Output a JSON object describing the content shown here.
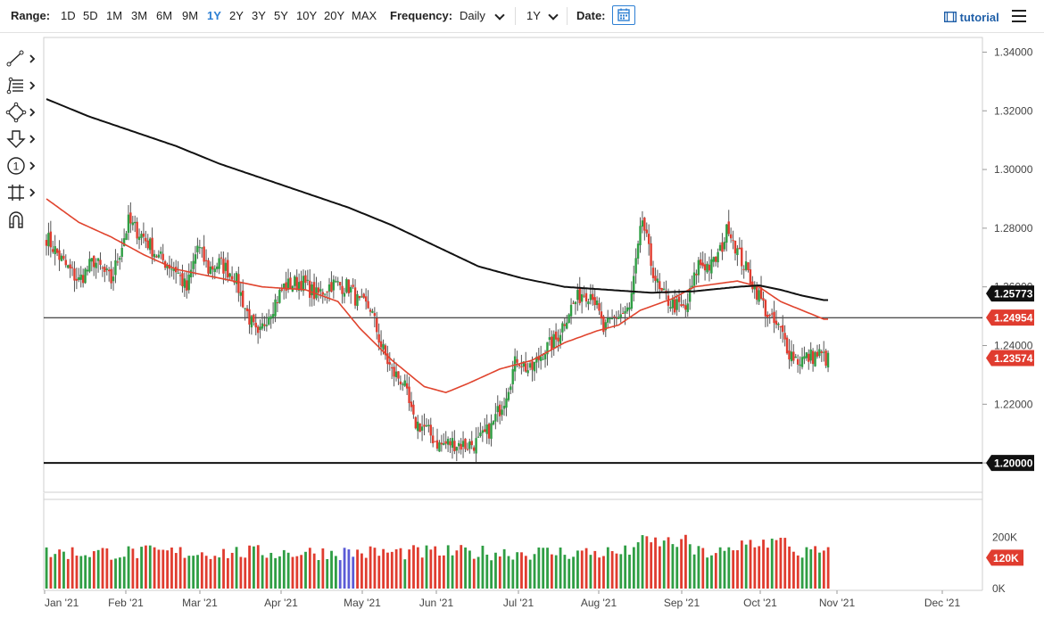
{
  "toolbar": {
    "range_label": "Range:",
    "ranges": [
      "1D",
      "5D",
      "1M",
      "3M",
      "6M",
      "9M",
      "1Y",
      "2Y",
      "3Y",
      "5Y",
      "10Y",
      "20Y",
      "MAX"
    ],
    "active_range": "1Y",
    "frequency_label": "Frequency:",
    "frequency_value": "Daily",
    "period_value": "1Y",
    "date_label": "Date:",
    "tutorial_label": "tutorial"
  },
  "tools": [
    "line-tool-icon",
    "fibonacci-tool-icon",
    "shape-tool-icon",
    "arrow-tool-icon",
    "annotation-number-icon",
    "measure-tool-icon",
    "magnet-icon"
  ],
  "colors": {
    "up": "#2f9e44",
    "down": "#e03c2f",
    "ma_fast": "#e0442e",
    "ma_slow": "#111111",
    "price_tag": "#e03c2f",
    "dark_tag": "#111111",
    "selected_volume": "#5b5bd6"
  },
  "chart_data": {
    "type": "candlestick",
    "price_axis": {
      "min": 1.19,
      "max": 1.345,
      "ticks": [
        "1.34000",
        "1.32000",
        "1.30000",
        "1.28000",
        "1.26000",
        "1.24000",
        "1.22000",
        "1.20000"
      ]
    },
    "time_axis": {
      "labels": [
        "Jan '21",
        "Feb '21",
        "Mar '21",
        "Apr '21",
        "May '21",
        "Jun '21",
        "Jul '21",
        "Aug '21",
        "Sep '21",
        "Oct '21",
        "Nov '21",
        "Dec '21"
      ]
    },
    "price_tags": [
      {
        "value": "1.25773",
        "style": "dark"
      },
      {
        "value": "1.24954",
        "style": "red"
      },
      {
        "value": "1.23574",
        "style": "red"
      },
      {
        "value": "1.20000",
        "style": "dark"
      }
    ],
    "horizontal_lines": [
      1.2495,
      1.2
    ],
    "volume_axis": {
      "ticks": [
        "200K",
        "120K",
        "0K"
      ],
      "current_tag": "120K"
    },
    "candles_anchor": [
      [
        0,
        1.277
      ],
      [
        8,
        1.268
      ],
      [
        15,
        1.262
      ],
      [
        22,
        1.269
      ],
      [
        30,
        1.262
      ],
      [
        38,
        1.282
      ],
      [
        45,
        1.277
      ],
      [
        52,
        1.27
      ],
      [
        60,
        1.266
      ],
      [
        65,
        1.259
      ],
      [
        70,
        1.274
      ],
      [
        75,
        1.266
      ],
      [
        80,
        1.268
      ],
      [
        87,
        1.264
      ],
      [
        92,
        1.253
      ],
      [
        98,
        1.242
      ],
      [
        102,
        1.25
      ],
      [
        110,
        1.26
      ],
      [
        118,
        1.262
      ],
      [
        125,
        1.257
      ],
      [
        132,
        1.261
      ],
      [
        140,
        1.26
      ],
      [
        145,
        1.254
      ],
      [
        150,
        1.253
      ],
      [
        155,
        1.24
      ],
      [
        160,
        1.231
      ],
      [
        165,
        1.228
      ],
      [
        170,
        1.214
      ],
      [
        175,
        1.212
      ],
      [
        182,
        1.206
      ],
      [
        188,
        1.207
      ],
      [
        194,
        1.206
      ],
      [
        200,
        1.207
      ],
      [
        206,
        1.212
      ],
      [
        212,
        1.222
      ],
      [
        218,
        1.236
      ],
      [
        224,
        1.231
      ],
      [
        230,
        1.238
      ],
      [
        236,
        1.242
      ],
      [
        242,
        1.252
      ],
      [
        248,
        1.258
      ],
      [
        253,
        1.258
      ],
      [
        258,
        1.245
      ],
      [
        264,
        1.25
      ],
      [
        270,
        1.252
      ],
      [
        276,
        1.283
      ],
      [
        280,
        1.268
      ],
      [
        284,
        1.258
      ],
      [
        290,
        1.254
      ],
      [
        296,
        1.252
      ],
      [
        302,
        1.268
      ],
      [
        308,
        1.267
      ],
      [
        312,
        1.272
      ],
      [
        316,
        1.281
      ],
      [
        320,
        1.272
      ],
      [
        324,
        1.266
      ],
      [
        330,
        1.257
      ],
      [
        335,
        1.249
      ],
      [
        340,
        1.245
      ],
      [
        344,
        1.238
      ],
      [
        348,
        1.235
      ],
      [
        353,
        1.236
      ],
      [
        358,
        1.237
      ],
      [
        362,
        1.235
      ]
    ],
    "series": [
      {
        "name": "",
        "kind": "ma_fast",
        "anchors": [
          [
            0,
            1.29
          ],
          [
            15,
            1.282
          ],
          [
            30,
            1.277
          ],
          [
            45,
            1.271
          ],
          [
            60,
            1.266
          ],
          [
            80,
            1.263
          ],
          [
            100,
            1.26
          ],
          [
            120,
            1.259
          ],
          [
            135,
            1.255
          ],
          [
            145,
            1.246
          ],
          [
            160,
            1.235
          ],
          [
            175,
            1.226
          ],
          [
            185,
            1.224
          ],
          [
            195,
            1.227
          ],
          [
            210,
            1.232
          ],
          [
            225,
            1.235
          ],
          [
            240,
            1.241
          ],
          [
            255,
            1.245
          ],
          [
            265,
            1.247
          ],
          [
            275,
            1.252
          ],
          [
            290,
            1.256
          ],
          [
            300,
            1.26
          ],
          [
            310,
            1.261
          ],
          [
            320,
            1.262
          ],
          [
            330,
            1.26
          ],
          [
            340,
            1.255
          ],
          [
            350,
            1.252
          ],
          [
            360,
            1.249
          ]
        ]
      },
      {
        "name": "",
        "kind": "ma_slow",
        "anchors": [
          [
            0,
            1.324
          ],
          [
            20,
            1.318
          ],
          [
            40,
            1.313
          ],
          [
            60,
            1.308
          ],
          [
            80,
            1.302
          ],
          [
            100,
            1.297
          ],
          [
            120,
            1.292
          ],
          [
            140,
            1.287
          ],
          [
            160,
            1.281
          ],
          [
            180,
            1.274
          ],
          [
            200,
            1.267
          ],
          [
            220,
            1.263
          ],
          [
            240,
            1.26
          ],
          [
            260,
            1.259
          ],
          [
            280,
            1.258
          ],
          [
            300,
            1.2585
          ],
          [
            320,
            1.26
          ],
          [
            330,
            1.2605
          ],
          [
            340,
            1.259
          ],
          [
            350,
            1.257
          ],
          [
            360,
            1.2555
          ]
        ]
      }
    ]
  }
}
